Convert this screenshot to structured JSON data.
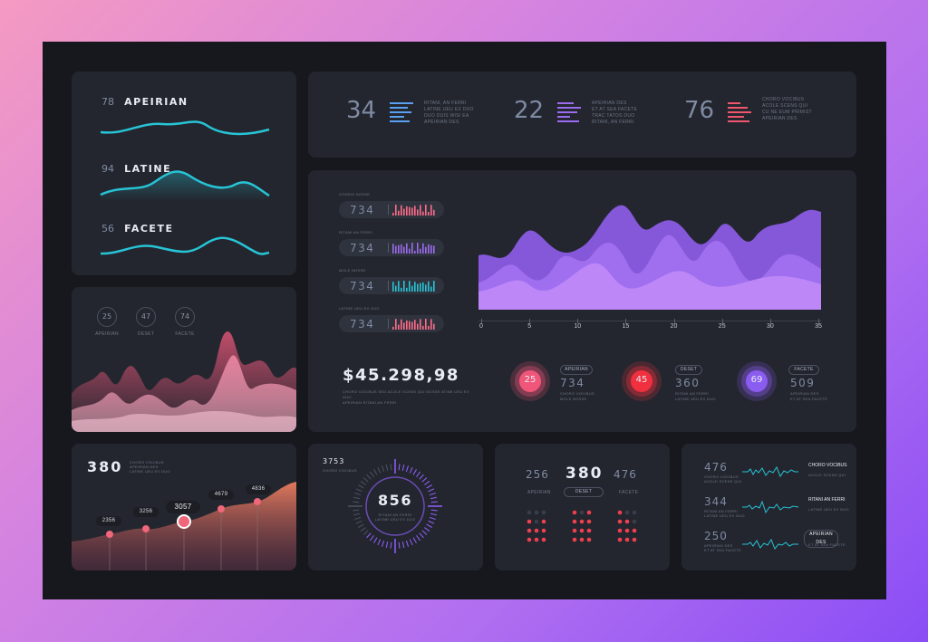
{
  "waves": {
    "items": [
      {
        "value": "78",
        "label": "APEIRIAN"
      },
      {
        "value": "94",
        "label": "LATINE"
      },
      {
        "value": "56",
        "label": "FACETE"
      }
    ],
    "color": "#27c4d6"
  },
  "mountains": {
    "circles": [
      {
        "value": "25",
        "label": "APEIRIAN"
      },
      {
        "value": "47",
        "label": "DESET"
      },
      {
        "value": "74",
        "label": "FACETE"
      }
    ]
  },
  "stats": [
    {
      "value": "34",
      "lines": [
        "RITANI, AN FERRI",
        "LATINE UEU EX DUO",
        "DUO DUIS WISI EA",
        "APEIRIAN DES"
      ],
      "color": "#5aa0f0"
    },
    {
      "value": "22",
      "lines": [
        "APEIRIAN DES",
        "ET AT SEA FACETE",
        "TRAC TATOS DUO",
        "RITANI, AN FERRI"
      ],
      "color": "#9b6cf0"
    },
    {
      "value": "76",
      "lines": [
        "CHORO VOCIBUS",
        "ACOLE SCENS QUI",
        "CU NE EUM PRIMIST",
        "APEIRIAN DES"
      ],
      "color": "#f0566e"
    }
  ],
  "meters": [
    {
      "label": "CONDIS NOSSE",
      "value": "734",
      "color": "#ff6b8a"
    },
    {
      "label": "RITANI AN FERRI",
      "value": "734",
      "color": "#9b6cf0"
    },
    {
      "label": "MOLE NOSSE",
      "value": "734",
      "color": "#27c4d6"
    },
    {
      "label": "LATINE UEU EX DUO",
      "value": "734",
      "color": "#ff6b8a"
    }
  ],
  "area_chart": {
    "chart_data": {
      "type": "area",
      "x_ticks": [
        "0",
        "5",
        "10",
        "15",
        "20",
        "25",
        "30",
        "35"
      ],
      "xlim": [
        0,
        35
      ]
    }
  },
  "total": {
    "value": "$45.298,98",
    "caption": [
      "CHORO VOCIBUS SED ACOLE SCENS QUI NOSSE ATINE UEU EX DUO",
      "APEIRIAN RITANI AN FERRI"
    ]
  },
  "rings": [
    {
      "value": "25",
      "pill": "APEIRIAN",
      "stat": "734",
      "cap": [
        "CHORO VOCIBUS",
        "MOLE NOSSE"
      ],
      "color": "#f0567a"
    },
    {
      "value": "45",
      "pill": "DESET",
      "stat": "360",
      "cap": [
        "RITANI AN FERRI",
        "LATINE UEU EX DUO"
      ],
      "color": "#f0303f"
    },
    {
      "value": "69",
      "pill": "FACETE",
      "stat": "509",
      "cap": [
        "APEIRIAN DES",
        "ET AT SEA FACETE"
      ],
      "color": "#8a5cf0"
    }
  ],
  "orange_chart": {
    "headline": "380",
    "headline_caption": [
      "CHORO VOCIBUS",
      "APEIRIAN DES",
      "LATINE UEU EX DUO"
    ],
    "chart_data": {
      "type": "area",
      "points": [
        {
          "label": "2356"
        },
        {
          "label": "3256"
        },
        {
          "label": "3057"
        },
        {
          "label": "4679"
        },
        {
          "label": "4836"
        }
      ]
    }
  },
  "gauge": {
    "small_value": "3753",
    "small_caption": "CHORO VOCIBUS",
    "value": "856",
    "caption": [
      "RITANI AN FERRI",
      "LATINE UEU EX DUO"
    ]
  },
  "dots": {
    "left": "256",
    "center": "380",
    "right": "476",
    "left_label": "APEIRIAN",
    "center_pill": "DESET",
    "right_label": "FACETE"
  },
  "signals": [
    {
      "value": "476",
      "cap": [
        "CHORO VOCIBUS",
        "ACOLE SCENS QUI"
      ],
      "tag": "CHORO VOCIBUS",
      "tag_cap": "ACOLE SCENS QUI"
    },
    {
      "value": "344",
      "cap": [
        "RITANI AN FERRI",
        "LATINE UEU EX DUO"
      ],
      "tag": "RITANI AN FERRI",
      "tag_cap": "LATINE UEU EX DUO"
    },
    {
      "value": "250",
      "cap": [
        "APEIRIAN DES",
        "ET AT SEA FACETE"
      ],
      "tag": "APEIRIAN DES",
      "tag_cap": "ET AT SEA FACETE"
    }
  ]
}
